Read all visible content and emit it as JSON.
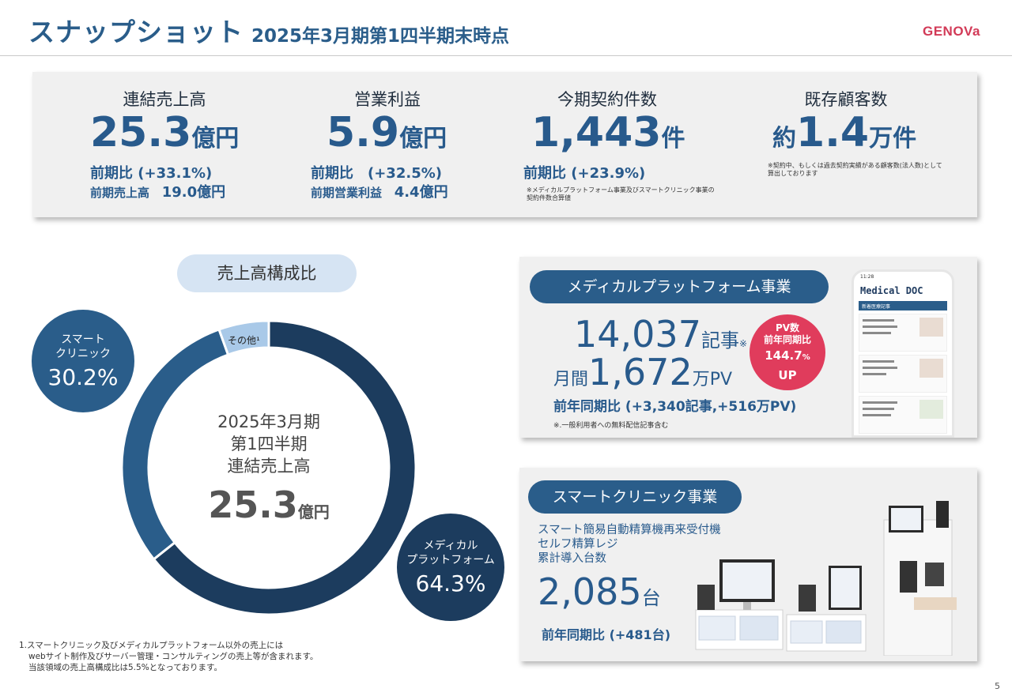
{
  "header": {
    "title": "スナップショット",
    "subtitle": "2025年3月期第1四半期末時点",
    "logo": "GENOVa"
  },
  "kpis": {
    "revenue": {
      "label": "連結売上高",
      "value": "25.3",
      "unit": "億円",
      "yoy": "前期比 (+33.1%)",
      "prev_label": "前期売上高",
      "prev_value": "19.0億円"
    },
    "operating_profit": {
      "label": "営業利益",
      "value": "5.9",
      "unit": "億円",
      "yoy": "前期比　(+32.5%)",
      "prev_label": "前期営業利益",
      "prev_value": "4.4億円"
    },
    "contracts": {
      "label": "今期契約件数",
      "value": "1,443",
      "unit": "件",
      "yoy": "前期比 (+23.9%)",
      "note_line1": "※メディカルプラットフォーム事業及びスマートクリニック事業の",
      "note_line2": "契約件数合算値"
    },
    "customers": {
      "label": "既存顧客数",
      "prefix": "約",
      "value": "1.4",
      "unit": "万件",
      "note_line1": "※契約中、もしくは過去契約実績がある顧客数(法人数)として",
      "note_line2": "算出しております"
    }
  },
  "composition": {
    "title": "売上高構成比",
    "center_line1": "2025年3月期",
    "center_line2": "第1四半期",
    "center_line3": "連結売上高",
    "center_value": "25.3",
    "center_unit": "億円",
    "smart_clinic": {
      "line1": "スマート",
      "line2": "クリニック",
      "pct": "30.2%"
    },
    "medical_platform": {
      "line1": "メディカル",
      "line2": "プラットフォーム",
      "pct": "64.3%"
    },
    "other_label": "その他¹",
    "footnote_line1": "1.スマートクリニック及びメディカルプラットフォーム以外の売上には",
    "footnote_line2": "webサイト制作及びサーバー管理・コンサルティングの売上等が含まれます。",
    "footnote_line3": "当該領域の売上高構成比は5.5%となっております。"
  },
  "chart_data": {
    "type": "pie",
    "categories": [
      "メディカルプラットフォーム",
      "スマートクリニック",
      "その他"
    ],
    "values": [
      64.3,
      30.2,
      5.5
    ],
    "colors": [
      "#1c3c5e",
      "#2a5d8a",
      "#a9c9e8"
    ]
  },
  "medical_platform": {
    "title": "メディカルプラットフォーム事業",
    "articles_value": "14,037",
    "articles_unit": "記事",
    "articles_mark": "※",
    "pv_prefix": "月間",
    "pv_value": "1,672",
    "pv_unit": "万PV",
    "yoy": "前年同期比 (+3,340記事,+516万PV)",
    "note": "※.一般利用者への無料配信記事含む",
    "pv_badge": {
      "line1": "PV数",
      "line2": "前年同期比",
      "value": "144.7",
      "pct": "%",
      "line4": "UP"
    },
    "phone": {
      "time": "11:28",
      "app_title": "Medical DOC",
      "tab": "新着医療記事"
    }
  },
  "smart_clinic": {
    "title": "スマートクリニック事業",
    "desc_line1": "スマート簡易自動精算機再来受付機",
    "desc_line2": "セルフ精算レジ",
    "desc_line3": "累計導入台数",
    "value": "2,085",
    "unit": "台",
    "yoy": "前年同期比 (+481台)"
  },
  "page_number": "5"
}
